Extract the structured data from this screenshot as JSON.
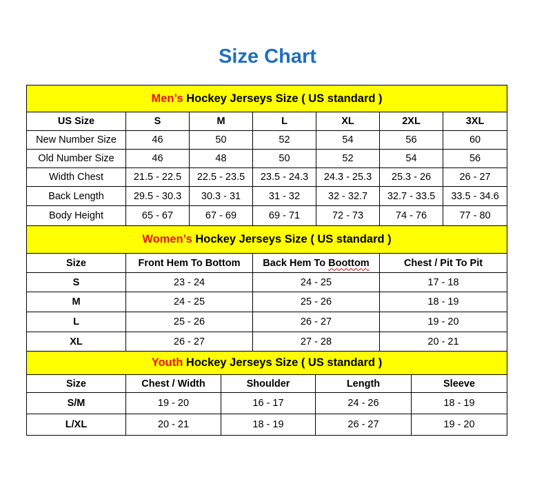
{
  "title": "Size Chart",
  "colors": {
    "title": "#1f6fbf",
    "header_bg": "#ffff00",
    "accent": "#e8141a"
  },
  "sections": [
    {
      "id": "men",
      "accent_word": "Men’s",
      "heading_rest": " Hockey Jerseys Size ( US standard )",
      "columns": [
        "US Size",
        "S",
        "M",
        "L",
        "XL",
        "2XL",
        "3XL"
      ],
      "rows": [
        [
          "New Number Size",
          "46",
          "50",
          "52",
          "54",
          "56",
          "60"
        ],
        [
          "Old Number Size",
          "46",
          "48",
          "50",
          "52",
          "54",
          "56"
        ],
        [
          "Width Chest",
          "21.5 - 22.5",
          "22.5 - 23.5",
          "23.5 - 24.3",
          "24.3 - 25.3",
          "25.3 - 26",
          "26 - 27"
        ],
        [
          "Back Length",
          "29.5 - 30.3",
          "30.3 - 31",
          "31 - 32",
          "32 - 32.7",
          "32.7 - 33.5",
          "33.5 - 34.6"
        ],
        [
          "Body Height",
          "65 - 67",
          "67 - 69",
          "69 - 71",
          "72 - 73",
          "74 - 76",
          "77 - 80"
        ]
      ]
    },
    {
      "id": "women",
      "accent_word": "Women’s",
      "heading_rest": " Hockey Jerseys Size ( US standard )",
      "columns": [
        "Size",
        "Front Hem To Bottom",
        "Back Hem To Boottom",
        "Chest / Pit To Pit"
      ],
      "rows": [
        [
          "S",
          "23 - 24",
          "24 - 25",
          "17 - 18"
        ],
        [
          "M",
          "24 - 25",
          "25 - 26",
          "18 - 19"
        ],
        [
          "L",
          "25 - 26",
          "26 - 27",
          "19 - 20"
        ],
        [
          "XL",
          "26 - 27",
          "27 - 28",
          "20 - 21"
        ]
      ]
    },
    {
      "id": "youth",
      "accent_word": "Youth",
      "heading_rest": " Hockey Jerseys Size ( US standard )",
      "columns": [
        "Size",
        "Chest / Width",
        "Shoulder",
        "Length",
        "Sleeve"
      ],
      "rows": [
        [
          "S/M",
          "19 - 20",
          "16 - 17",
          "24 - 26",
          "18 - 19"
        ],
        [
          "L/XL",
          "20 - 21",
          "18 - 19",
          "26 - 27",
          "19 - 20"
        ]
      ]
    }
  ]
}
